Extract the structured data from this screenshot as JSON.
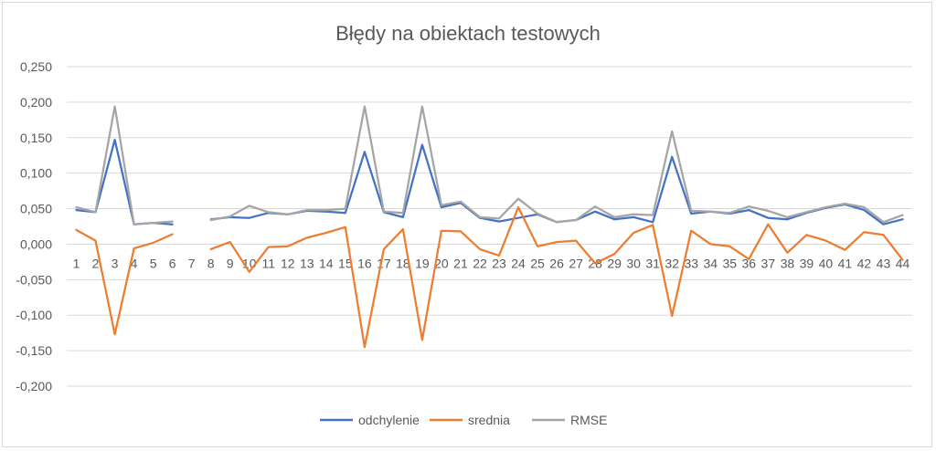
{
  "chart_data": {
    "type": "line",
    "title": "Błędy na obiektach testowych",
    "xlabel": "",
    "ylabel": "",
    "categories": [
      "1",
      "2",
      "3",
      "4",
      "5",
      "6",
      "7",
      "8",
      "9",
      "10",
      "11",
      "12",
      "13",
      "14",
      "15",
      "16",
      "17",
      "18",
      "19",
      "20",
      "21",
      "22",
      "23",
      "24",
      "25",
      "26",
      "27",
      "28",
      "29",
      "30",
      "31",
      "32",
      "33",
      "34",
      "35",
      "36",
      "37",
      "38",
      "39",
      "40",
      "41",
      "42",
      "43",
      "44"
    ],
    "ylim": [
      -0.2,
      0.25
    ],
    "yticks": [
      "0,250",
      "0,200",
      "0,150",
      "0,100",
      "0,050",
      "0,000",
      "-0,050",
      "-0,100",
      "-0,150",
      "-0,200"
    ],
    "ytick_values": [
      0.25,
      0.2,
      0.15,
      0.1,
      0.05,
      0.0,
      -0.05,
      -0.1,
      -0.15,
      -0.2
    ],
    "grid": true,
    "legend_position": "bottom",
    "series": [
      {
        "name": "odchylenie",
        "color": "#4472c4",
        "values": [
          0.048,
          0.045,
          0.147,
          0.028,
          0.03,
          0.028,
          null,
          0.035,
          0.038,
          0.037,
          0.044,
          0.042,
          0.047,
          0.046,
          0.044,
          0.13,
          0.045,
          0.038,
          0.14,
          0.052,
          0.058,
          0.037,
          0.032,
          0.037,
          0.042,
          0.031,
          0.034,
          0.046,
          0.035,
          0.038,
          0.031,
          0.123,
          0.043,
          0.046,
          0.043,
          0.048,
          0.037,
          0.035,
          0.044,
          0.051,
          0.056,
          0.048,
          0.028,
          0.035
        ]
      },
      {
        "name": "srednia",
        "color": "#ed7d31",
        "values": [
          0.02,
          0.005,
          -0.127,
          -0.006,
          0.002,
          0.014,
          null,
          -0.007,
          0.003,
          -0.039,
          -0.004,
          -0.003,
          0.009,
          0.016,
          0.024,
          -0.145,
          -0.007,
          0.021,
          -0.135,
          0.019,
          0.018,
          -0.007,
          -0.016,
          0.052,
          -0.003,
          0.003,
          0.005,
          -0.027,
          -0.014,
          0.016,
          0.027,
          -0.101,
          0.019,
          0.0,
          -0.003,
          -0.021,
          0.028,
          -0.012,
          0.013,
          0.005,
          -0.008,
          0.017,
          0.013,
          -0.022
        ]
      },
      {
        "name": "RMSE",
        "color": "#a5a5a5",
        "values": [
          0.052,
          0.045,
          0.194,
          0.028,
          0.03,
          0.032,
          null,
          0.034,
          0.039,
          0.054,
          0.045,
          0.042,
          0.048,
          0.048,
          0.05,
          0.194,
          0.046,
          0.044,
          0.194,
          0.055,
          0.06,
          0.038,
          0.036,
          0.064,
          0.043,
          0.031,
          0.034,
          0.053,
          0.038,
          0.042,
          0.041,
          0.159,
          0.047,
          0.046,
          0.044,
          0.053,
          0.047,
          0.038,
          0.045,
          0.052,
          0.057,
          0.052,
          0.031,
          0.041
        ]
      }
    ]
  }
}
